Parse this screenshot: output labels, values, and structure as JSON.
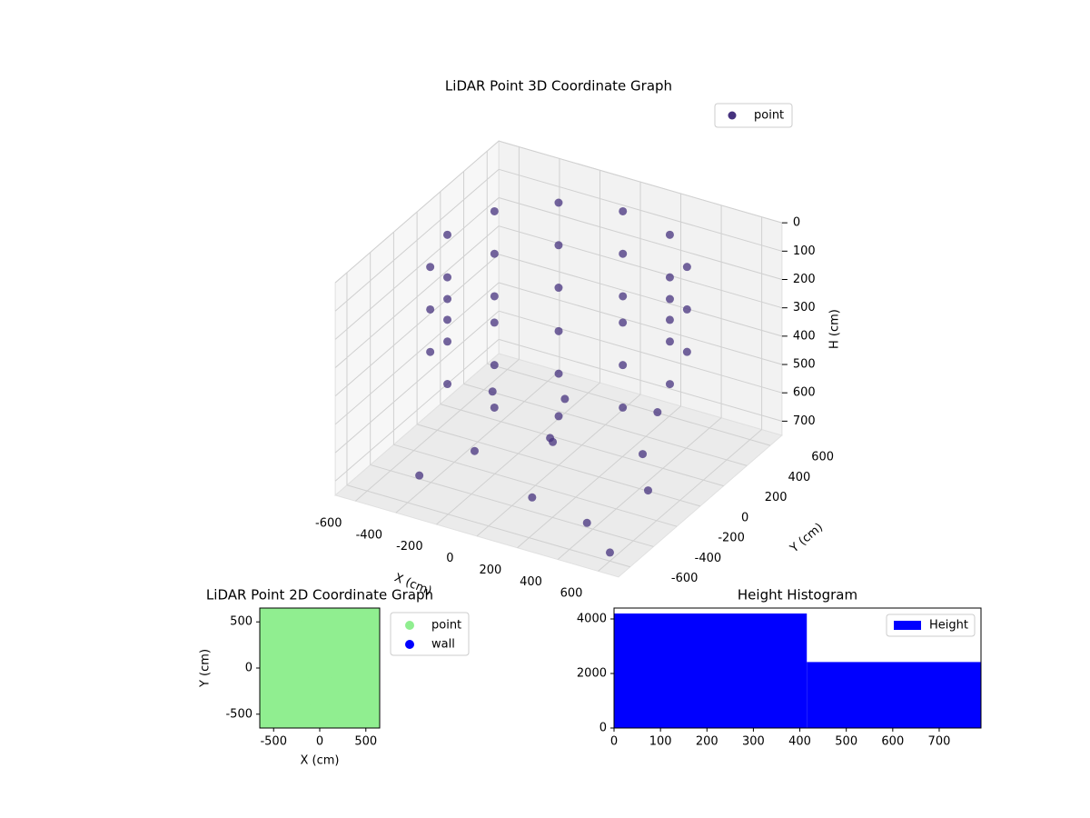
{
  "chart_data": [
    {
      "type": "scatter3d",
      "title": "LiDAR Point 3D Coordinate Graph",
      "xlabel": "X (cm)",
      "ylabel": "Y (cm)",
      "zlabel": "H (cm)",
      "xlim": [
        -700,
        700
      ],
      "ylim": [
        -700,
        700
      ],
      "zlim": [
        0,
        750
      ],
      "zinvert": true,
      "xticks": [
        -600,
        -400,
        -200,
        0,
        200,
        400,
        600
      ],
      "yticks": [
        -600,
        -400,
        -200,
        0,
        200,
        400,
        600
      ],
      "zticks": [
        0,
        100,
        200,
        300,
        400,
        500,
        600,
        700
      ],
      "legend": "upper right",
      "series": [
        {
          "name": "point",
          "color": "#46327e",
          "x": [
            550,
            476,
            275,
            0,
            -275,
            -476,
            -550,
            -476,
            -275,
            0,
            275,
            476,
            550,
            476,
            275,
            0,
            -275,
            -476,
            -550,
            -476,
            -275,
            0,
            275,
            476,
            550,
            476,
            275,
            0,
            -275,
            -476,
            -550,
            -476,
            -275,
            0,
            275,
            476,
            -500,
            -300,
            -100,
            100,
            300,
            500,
            -400,
            200,
            0,
            400,
            -200,
            600
          ],
          "y": [
            0,
            275,
            476,
            550,
            476,
            275,
            0,
            -275,
            -476,
            -550,
            -476,
            -275,
            0,
            275,
            476,
            550,
            476,
            275,
            0,
            -275,
            -476,
            -550,
            -476,
            -275,
            0,
            275,
            476,
            550,
            476,
            275,
            0,
            -275,
            -476,
            -550,
            -476,
            -275,
            300,
            -200,
            100,
            -400,
            200,
            -100,
            -500,
            500,
            -50,
            -450,
            400,
            -600
          ],
          "z": [
            50,
            50,
            50,
            50,
            50,
            50,
            50,
            50,
            50,
            50,
            50,
            50,
            200,
            200,
            200,
            200,
            200,
            200,
            200,
            200,
            200,
            200,
            200,
            200,
            350,
            350,
            350,
            350,
            350,
            350,
            350,
            350,
            350,
            350,
            350,
            350,
            700,
            690,
            710,
            700,
            720,
            700,
            690,
            700,
            650,
            710,
            700,
            720
          ]
        }
      ]
    },
    {
      "type": "scatter",
      "title": "LiDAR Point 2D Coordinate Graph",
      "xlabel": "X (cm)",
      "ylabel": "Y (cm)",
      "xlim": [
        -650,
        650
      ],
      "ylim": [
        -650,
        650
      ],
      "xticks": [
        -500,
        0,
        500
      ],
      "yticks": [
        -500,
        0,
        500
      ],
      "legend": "outside right",
      "series": [
        {
          "name": "point",
          "color": "#90ee90",
          "x": [
            -600,
            -450,
            -300,
            -150,
            0,
            150,
            300,
            450,
            600,
            -600,
            -450,
            -300,
            -150,
            0,
            150,
            300,
            450,
            600,
            -600,
            -450,
            -300,
            -150,
            0,
            150,
            300,
            450,
            600,
            -600,
            -450,
            -300,
            -150,
            0,
            150,
            300,
            450,
            600,
            -600,
            -450,
            -300,
            -150,
            0,
            150,
            300,
            450,
            600,
            -600,
            -450,
            -300,
            -150,
            0,
            150,
            300,
            450,
            600,
            -600,
            -450,
            -300,
            -150,
            0,
            150,
            300,
            450,
            600,
            -600,
            -450,
            -300,
            -150,
            0,
            150,
            300,
            450,
            600,
            -600,
            -450,
            -300,
            -150,
            0,
            150,
            300,
            450,
            600
          ],
          "y": [
            -600,
            -600,
            -600,
            -600,
            -600,
            -600,
            -600,
            -600,
            -600,
            -450,
            -450,
            -450,
            -450,
            -450,
            -450,
            -450,
            -450,
            -450,
            -300,
            -300,
            -300,
            -300,
            -300,
            -300,
            -300,
            -300,
            -300,
            -150,
            -150,
            -150,
            -150,
            -150,
            -150,
            -150,
            -150,
            -150,
            0,
            0,
            0,
            0,
            0,
            0,
            0,
            0,
            0,
            150,
            150,
            150,
            150,
            150,
            150,
            150,
            150,
            150,
            300,
            300,
            300,
            300,
            300,
            300,
            300,
            300,
            300,
            450,
            450,
            450,
            450,
            450,
            450,
            450,
            450,
            450,
            600,
            600,
            600,
            600,
            600,
            600,
            600,
            600,
            600
          ]
        },
        {
          "name": "wall",
          "color": "#0000ff",
          "x": [],
          "y": []
        }
      ]
    },
    {
      "type": "histogram",
      "title": "Height Histogram",
      "bins": [
        0,
        415,
        790
      ],
      "values": [
        4200,
        2420
      ],
      "xlim": [
        0,
        790
      ],
      "ylim": [
        0,
        4400
      ],
      "xticks": [
        0,
        100,
        200,
        300,
        400,
        500,
        600,
        700
      ],
      "yticks": [
        0,
        2000,
        4000
      ],
      "legend": "upper right",
      "series_name": "Height",
      "color": "#0000ff"
    }
  ]
}
